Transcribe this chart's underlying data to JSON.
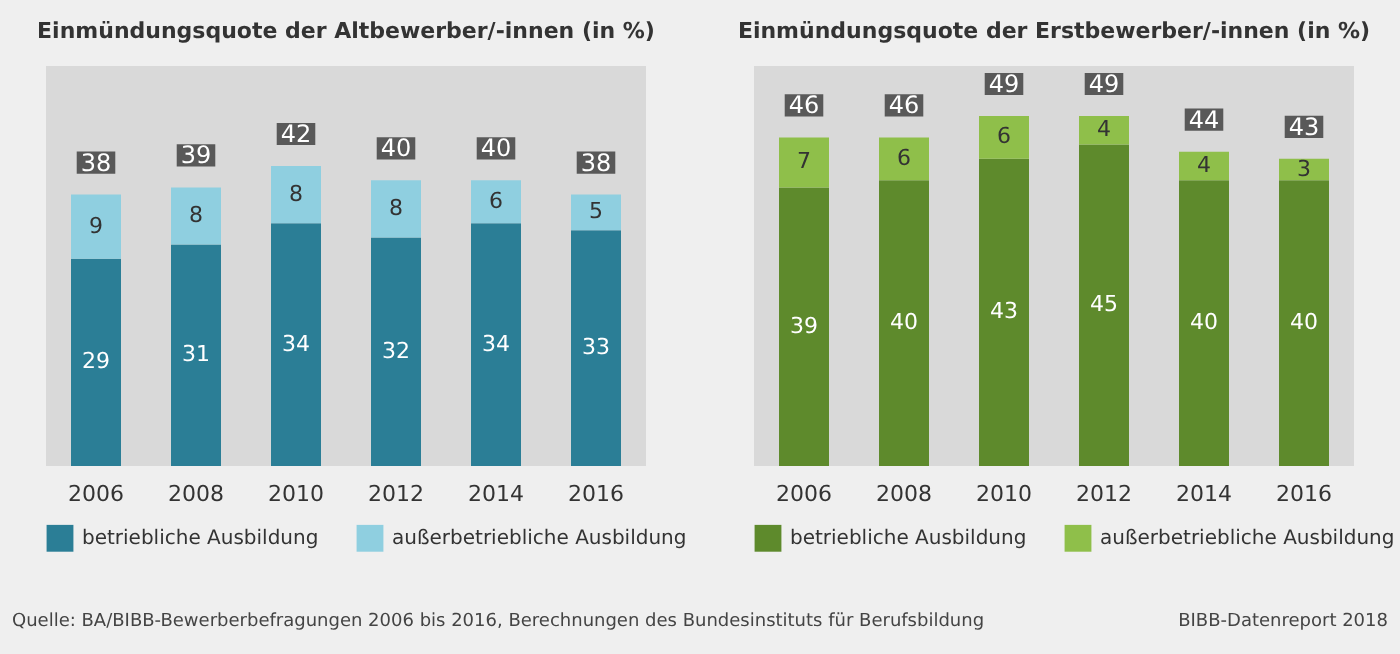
{
  "chart_data": [
    {
      "type": "bar",
      "title": "Einmündungsquote der Altbewerber/-innen (in %)",
      "categories": [
        "2006",
        "2008",
        "2010",
        "2012",
        "2014",
        "2016"
      ],
      "stacked": true,
      "data_labels": true,
      "ylim": [
        0,
        56
      ],
      "legend": "bottom",
      "series": [
        {
          "name": "betriebliche Ausbildung",
          "color": "#2b7e96",
          "values": [
            29,
            31,
            34,
            32,
            34,
            33
          ]
        },
        {
          "name": "außerbetriebliche Ausbildung",
          "color": "#8fcfe0",
          "values": [
            9,
            8,
            8,
            8,
            6,
            5
          ]
        }
      ],
      "totals": [
        "38",
        "39",
        "42",
        "40",
        "40",
        "38"
      ],
      "annotations": [
        "Quelle: BA/BIBB-Bewerberbefragungen 2006 bis 2016, Berechnungen des Bundesinstituts für Berufsbildung"
      ]
    },
    {
      "type": "bar",
      "title": "Einmündungsquote der Erstbewerber/-innen (in %)",
      "categories": [
        "2006",
        "2008",
        "2010",
        "2012",
        "2014",
        "2016"
      ],
      "stacked": true,
      "data_labels": true,
      "ylim": [
        0,
        56
      ],
      "legend": "bottom",
      "series": [
        {
          "name": "betriebliche Ausbildung",
          "color": "#5e8a2c",
          "values": [
            39,
            40,
            43,
            45,
            40,
            40
          ]
        },
        {
          "name": "außerbetriebliche Ausbildung",
          "color": "#8fbf4a",
          "values": [
            7,
            6,
            6,
            4,
            4,
            3
          ]
        }
      ],
      "totals": [
        "46",
        "46",
        "49",
        "49",
        "44",
        "43"
      ],
      "annotations": [
        "BIBB-Datenreport 2018"
      ]
    }
  ]
}
